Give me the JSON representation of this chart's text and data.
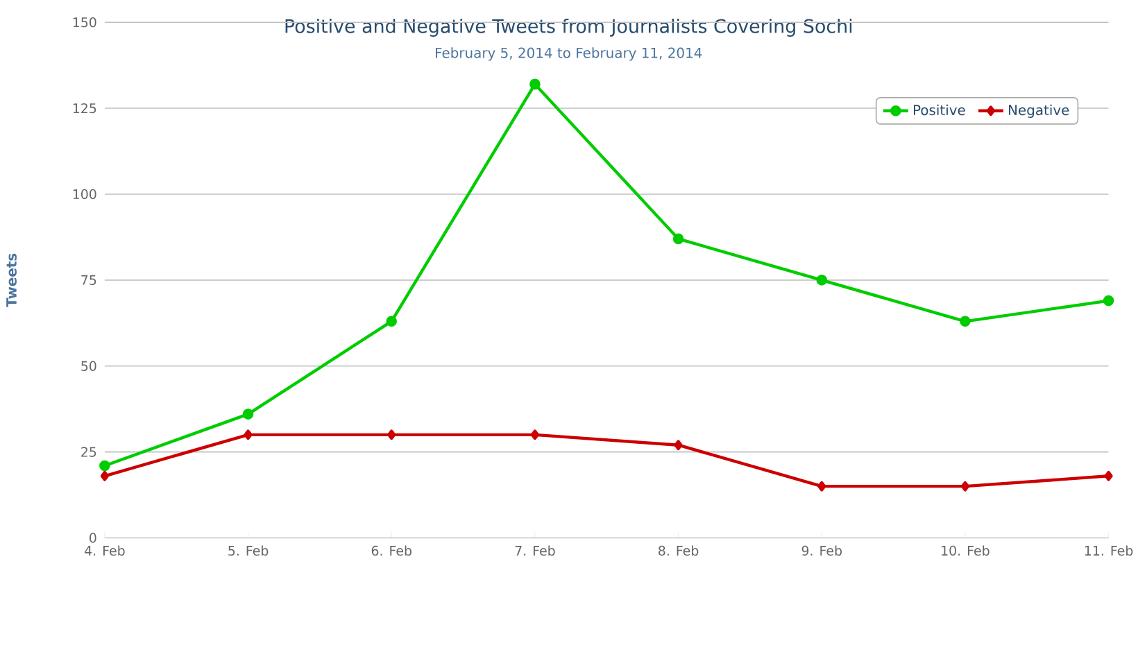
{
  "chart_data": {
    "type": "line",
    "title": "Positive and Negative Tweets from Journalists Covering Sochi",
    "subtitle": "February 5, 2014 to February 11, 2014",
    "ylabel": "Tweets",
    "categories": [
      "4. Feb",
      "5. Feb",
      "6. Feb",
      "7. Feb",
      "8. Feb",
      "9. Feb",
      "10. Feb",
      "11. Feb"
    ],
    "series": [
      {
        "name": "Positive",
        "color": "#00cc00",
        "marker": "circle",
        "values": [
          21,
          36,
          63,
          132,
          87,
          75,
          63,
          69
        ]
      },
      {
        "name": "Negative",
        "color": "#cc0000",
        "marker": "diamond",
        "values": [
          18,
          30,
          30,
          30,
          27,
          15,
          15,
          18
        ]
      }
    ],
    "ylim": [
      0,
      150
    ],
    "yticks": [
      0,
      25,
      50,
      75,
      100,
      125,
      150
    ],
    "grid": "y",
    "legend": "top right",
    "line_style": "solid"
  }
}
